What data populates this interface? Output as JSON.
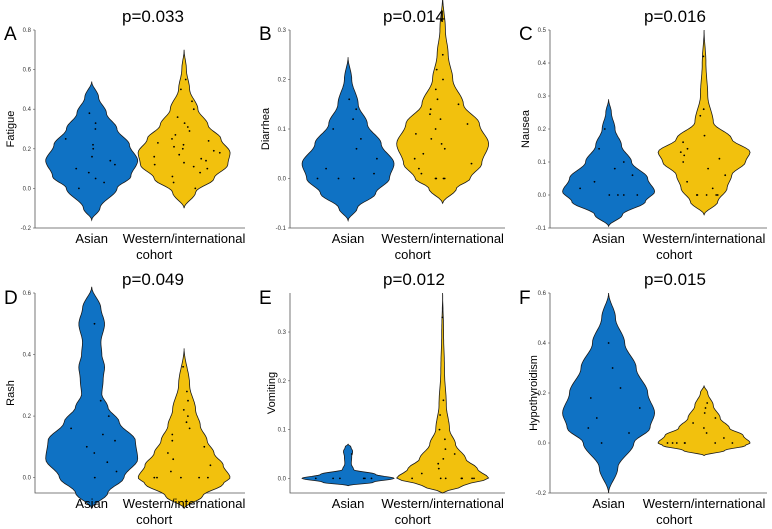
{
  "colors": {
    "asian": "#0f72c4",
    "western": "#f2c10d",
    "outline": "#1a1a1a",
    "point": "#000000"
  },
  "chart_data": [
    {
      "type": "violin",
      "label": "A",
      "title": "p=0.033",
      "ylabel": "Fatigue",
      "categories": [
        "Asian",
        "Western/international",
        "cohort"
      ],
      "ylim": [
        -0.2,
        0.8
      ],
      "yticks": [
        "-0.2",
        "0.0",
        "0.2",
        "0.4",
        "0.6",
        "0.8"
      ],
      "series": [
        {
          "name": "Asian",
          "range": [
            -0.16,
            0.54
          ],
          "profile": [
            [
              -0.16,
              0.0
            ],
            [
              -0.1,
              0.18
            ],
            [
              0.0,
              0.55
            ],
            [
              0.06,
              0.85
            ],
            [
              0.14,
              1.0
            ],
            [
              0.22,
              0.82
            ],
            [
              0.3,
              0.55
            ],
            [
              0.38,
              0.32
            ],
            [
              0.46,
              0.15
            ],
            [
              0.54,
              0.0
            ]
          ],
          "points": [
            0.0,
            0.03,
            0.05,
            0.08,
            0.1,
            0.12,
            0.14,
            0.16,
            0.2,
            0.22,
            0.25,
            0.3,
            0.33,
            0.38
          ]
        },
        {
          "name": "Western/international",
          "range": [
            -0.1,
            0.7
          ],
          "profile": [
            [
              -0.1,
              0.0
            ],
            [
              -0.02,
              0.25
            ],
            [
              0.05,
              0.65
            ],
            [
              0.12,
              0.95
            ],
            [
              0.18,
              1.0
            ],
            [
              0.25,
              0.8
            ],
            [
              0.32,
              0.52
            ],
            [
              0.4,
              0.3
            ],
            [
              0.5,
              0.12
            ],
            [
              0.6,
              0.05
            ],
            [
              0.7,
              0.0
            ]
          ],
          "points": [
            0.0,
            0.03,
            0.06,
            0.08,
            0.1,
            0.11,
            0.12,
            0.13,
            0.14,
            0.15,
            0.16,
            0.17,
            0.18,
            0.19,
            0.2,
            0.21,
            0.22,
            0.23,
            0.24,
            0.25,
            0.27,
            0.29,
            0.31,
            0.33,
            0.36,
            0.4,
            0.44,
            0.5,
            0.55
          ]
        }
      ]
    },
    {
      "type": "violin",
      "label": "B",
      "title": "p=0.014",
      "ylabel": "Diarrhea",
      "categories": [
        "Asian",
        "Western/international",
        "cohort"
      ],
      "ylim": [
        -0.1,
        0.3
      ],
      "yticks": [
        "-0.1",
        "0.0",
        "0.1",
        "0.2",
        "0.3"
      ],
      "series": [
        {
          "name": "Asian",
          "range": [
            -0.085,
            0.245
          ],
          "profile": [
            [
              -0.085,
              0.0
            ],
            [
              -0.06,
              0.2
            ],
            [
              -0.03,
              0.6
            ],
            [
              0.0,
              0.9
            ],
            [
              0.03,
              1.0
            ],
            [
              0.07,
              0.72
            ],
            [
              0.11,
              0.42
            ],
            [
              0.15,
              0.22
            ],
            [
              0.2,
              0.08
            ],
            [
              0.245,
              0.0
            ]
          ],
          "points": [
            0.0,
            0.0,
            0.0,
            0.01,
            0.02,
            0.04,
            0.06,
            0.08,
            0.1,
            0.12,
            0.14,
            0.16
          ]
        },
        {
          "name": "Western/international",
          "range": [
            -0.05,
            0.37
          ],
          "profile": [
            [
              -0.05,
              0.0
            ],
            [
              -0.02,
              0.3
            ],
            [
              0.0,
              0.6
            ],
            [
              0.03,
              0.85
            ],
            [
              0.07,
              1.0
            ],
            [
              0.11,
              0.8
            ],
            [
              0.15,
              0.45
            ],
            [
              0.2,
              0.22
            ],
            [
              0.25,
              0.12
            ],
            [
              0.3,
              0.06
            ],
            [
              0.37,
              0.0
            ]
          ],
          "points": [
            0.0,
            0.0,
            0.0,
            0.0,
            0.01,
            0.02,
            0.03,
            0.04,
            0.05,
            0.06,
            0.07,
            0.08,
            0.09,
            0.1,
            0.11,
            0.12,
            0.13,
            0.14,
            0.15,
            0.16,
            0.18,
            0.2,
            0.22,
            0.25,
            0.32
          ]
        }
      ]
    },
    {
      "type": "violin",
      "label": "C",
      "title": "p=0.016",
      "ylabel": "Nausea",
      "categories": [
        "Asian",
        "Western/international",
        "cohort"
      ],
      "ylim": [
        -0.1,
        0.5
      ],
      "yticks": [
        "-0.1",
        "0.0",
        "0.1",
        "0.2",
        "0.3",
        "0.4",
        "0.5"
      ],
      "series": [
        {
          "name": "Asian",
          "range": [
            -0.095,
            0.29
          ],
          "profile": [
            [
              -0.095,
              0.0
            ],
            [
              -0.06,
              0.3
            ],
            [
              -0.02,
              0.8
            ],
            [
              0.01,
              1.0
            ],
            [
              0.05,
              0.85
            ],
            [
              0.1,
              0.5
            ],
            [
              0.15,
              0.28
            ],
            [
              0.2,
              0.14
            ],
            [
              0.25,
              0.06
            ],
            [
              0.29,
              0.0
            ]
          ],
          "points": [
            0.0,
            0.0,
            0.0,
            0.0,
            0.02,
            0.04,
            0.06,
            0.08,
            0.1,
            0.14,
            0.2
          ]
        },
        {
          "name": "Western/international",
          "range": [
            -0.06,
            0.5
          ],
          "profile": [
            [
              -0.06,
              0.0
            ],
            [
              -0.02,
              0.3
            ],
            [
              0.02,
              0.5
            ],
            [
              0.06,
              0.6
            ],
            [
              0.1,
              0.9
            ],
            [
              0.13,
              1.0
            ],
            [
              0.17,
              0.6
            ],
            [
              0.22,
              0.2
            ],
            [
              0.3,
              0.08
            ],
            [
              0.4,
              0.04
            ],
            [
              0.5,
              0.0
            ]
          ],
          "points": [
            0.0,
            0.0,
            0.0,
            0.0,
            0.0,
            0.02,
            0.04,
            0.06,
            0.08,
            0.1,
            0.11,
            0.12,
            0.13,
            0.14,
            0.16,
            0.18,
            0.24,
            0.26,
            0.42
          ]
        }
      ]
    },
    {
      "type": "violin",
      "label": "D",
      "title": "p=0.049",
      "ylabel": "Rash",
      "categories": [
        "Asian",
        "Western/international",
        "cohort"
      ],
      "ylim": [
        -0.05,
        0.6
      ],
      "yticks": [
        "0.0",
        "0.2",
        "0.4",
        "0.6"
      ],
      "series": [
        {
          "name": "Asian",
          "range": [
            -0.1,
            0.62
          ],
          "profile": [
            [
              -0.1,
              0.0
            ],
            [
              -0.05,
              0.35
            ],
            [
              0.0,
              0.7
            ],
            [
              0.06,
              1.0
            ],
            [
              0.12,
              0.95
            ],
            [
              0.18,
              0.6
            ],
            [
              0.23,
              0.35
            ],
            [
              0.27,
              0.22
            ],
            [
              0.32,
              0.25
            ],
            [
              0.36,
              0.28
            ],
            [
              0.4,
              0.22
            ],
            [
              0.44,
              0.2
            ],
            [
              0.5,
              0.28
            ],
            [
              0.55,
              0.2
            ],
            [
              0.62,
              0.0
            ]
          ],
          "points": [
            0.0,
            0.02,
            0.05,
            0.08,
            0.1,
            0.12,
            0.14,
            0.16,
            0.2,
            0.25,
            0.5
          ]
        },
        {
          "name": "Western/international",
          "range": [
            -0.1,
            0.42
          ],
          "profile": [
            [
              -0.1,
              0.0
            ],
            [
              -0.06,
              0.4
            ],
            [
              -0.02,
              0.85
            ],
            [
              0.0,
              1.0
            ],
            [
              0.04,
              0.85
            ],
            [
              0.08,
              0.65
            ],
            [
              0.12,
              0.5
            ],
            [
              0.17,
              0.35
            ],
            [
              0.22,
              0.25
            ],
            [
              0.3,
              0.12
            ],
            [
              0.42,
              0.0
            ]
          ],
          "points": [
            0.0,
            0.0,
            0.0,
            0.0,
            0.0,
            0.02,
            0.04,
            0.06,
            0.08,
            0.1,
            0.12,
            0.14,
            0.16,
            0.18,
            0.2,
            0.22,
            0.25,
            0.28,
            0.36
          ]
        }
      ]
    },
    {
      "type": "violin",
      "label": "E",
      "title": "p=0.012",
      "ylabel": "Vomiting",
      "categories": [
        "Asian",
        "Western/international",
        "cohort"
      ],
      "ylim": [
        -0.03,
        0.38
      ],
      "yticks": [
        "0.0",
        "0.1",
        "0.2",
        "0.3"
      ],
      "series": [
        {
          "name": "Asian",
          "range": [
            -0.015,
            0.07
          ],
          "profile": [
            [
              -0.015,
              0.0
            ],
            [
              -0.008,
              0.55
            ],
            [
              0.0,
              1.0
            ],
            [
              0.008,
              0.6
            ],
            [
              0.018,
              0.12
            ],
            [
              0.03,
              0.07
            ],
            [
              0.045,
              0.08
            ],
            [
              0.055,
              0.1
            ],
            [
              0.065,
              0.06
            ],
            [
              0.07,
              0.0
            ]
          ],
          "points": [
            0.0,
            0.0,
            0.0,
            0.0,
            0.0,
            0.0,
            0.05
          ]
        },
        {
          "name": "Western/international",
          "range": [
            -0.03,
            0.38
          ],
          "profile": [
            [
              -0.03,
              0.0
            ],
            [
              -0.015,
              0.45
            ],
            [
              0.0,
              1.0
            ],
            [
              0.02,
              0.75
            ],
            [
              0.04,
              0.5
            ],
            [
              0.07,
              0.28
            ],
            [
              0.1,
              0.15
            ],
            [
              0.15,
              0.08
            ],
            [
              0.22,
              0.04
            ],
            [
              0.3,
              0.02
            ],
            [
              0.38,
              0.0
            ]
          ],
          "points": [
            0.0,
            0.0,
            0.0,
            0.0,
            0.0,
            0.0,
            0.0,
            0.01,
            0.02,
            0.03,
            0.04,
            0.05,
            0.06,
            0.08,
            0.1,
            0.13,
            0.16,
            0.33
          ]
        }
      ]
    },
    {
      "type": "violin",
      "label": "F",
      "title": "p=0.015",
      "ylabel": "Hypothyroidism",
      "categories": [
        "Asian",
        "Western/international",
        "cohort"
      ],
      "ylim": [
        -0.2,
        0.6
      ],
      "yticks": [
        "-0.2",
        "0.0",
        "0.2",
        "0.4",
        "0.6"
      ],
      "series": [
        {
          "name": "Asian",
          "range": [
            -0.2,
            0.6
          ],
          "profile": [
            [
              -0.2,
              0.0
            ],
            [
              -0.1,
              0.2
            ],
            [
              0.0,
              0.55
            ],
            [
              0.06,
              0.9
            ],
            [
              0.12,
              1.0
            ],
            [
              0.2,
              0.85
            ],
            [
              0.3,
              0.6
            ],
            [
              0.4,
              0.35
            ],
            [
              0.5,
              0.15
            ],
            [
              0.6,
              0.0
            ]
          ],
          "points": [
            0.0,
            0.04,
            0.06,
            0.1,
            0.14,
            0.18,
            0.22,
            0.3,
            0.4
          ]
        },
        {
          "name": "Western/international",
          "range": [
            -0.05,
            0.23
          ],
          "profile": [
            [
              -0.05,
              0.0
            ],
            [
              -0.03,
              0.45
            ],
            [
              -0.01,
              0.9
            ],
            [
              0.0,
              1.0
            ],
            [
              0.03,
              0.85
            ],
            [
              0.06,
              0.55
            ],
            [
              0.1,
              0.35
            ],
            [
              0.15,
              0.2
            ],
            [
              0.2,
              0.08
            ],
            [
              0.23,
              0.0
            ]
          ],
          "points": [
            0.0,
            0.0,
            0.0,
            0.0,
            0.0,
            0.0,
            0.0,
            0.02,
            0.04,
            0.06,
            0.08,
            0.1,
            0.12,
            0.14,
            0.16
          ]
        }
      ]
    }
  ]
}
